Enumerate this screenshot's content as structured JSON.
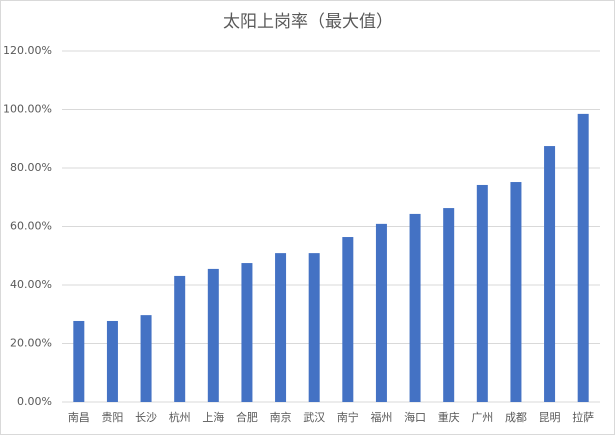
{
  "chart_data": {
    "type": "bar",
    "title": "太阳上岗率（最大值）",
    "categories": [
      "南昌",
      "贵阳",
      "长沙",
      "杭州",
      "上海",
      "合肥",
      "南京",
      "武汉",
      "南宁",
      "福州",
      "海口",
      "重庆",
      "广州",
      "成都",
      "昆明",
      "拉萨"
    ],
    "values": [
      27.7,
      27.7,
      29.7,
      43.1,
      45.5,
      47.5,
      50.9,
      50.9,
      56.4,
      60.9,
      64.3,
      66.3,
      74.2,
      75.2,
      87.5,
      98.5
    ],
    "color": "#4472c4",
    "ylim": [
      0,
      120
    ],
    "yticks": [
      {
        "value": 0,
        "label": "0.00%"
      },
      {
        "value": 20,
        "label": "20.00%"
      },
      {
        "value": 40,
        "label": "40.00%"
      },
      {
        "value": 60,
        "label": "60.00%"
      },
      {
        "value": 80,
        "label": "80.00%"
      },
      {
        "value": 100,
        "label": "100.00%"
      },
      {
        "value": 120,
        "label": "120.00%"
      }
    ],
    "grid": true
  }
}
